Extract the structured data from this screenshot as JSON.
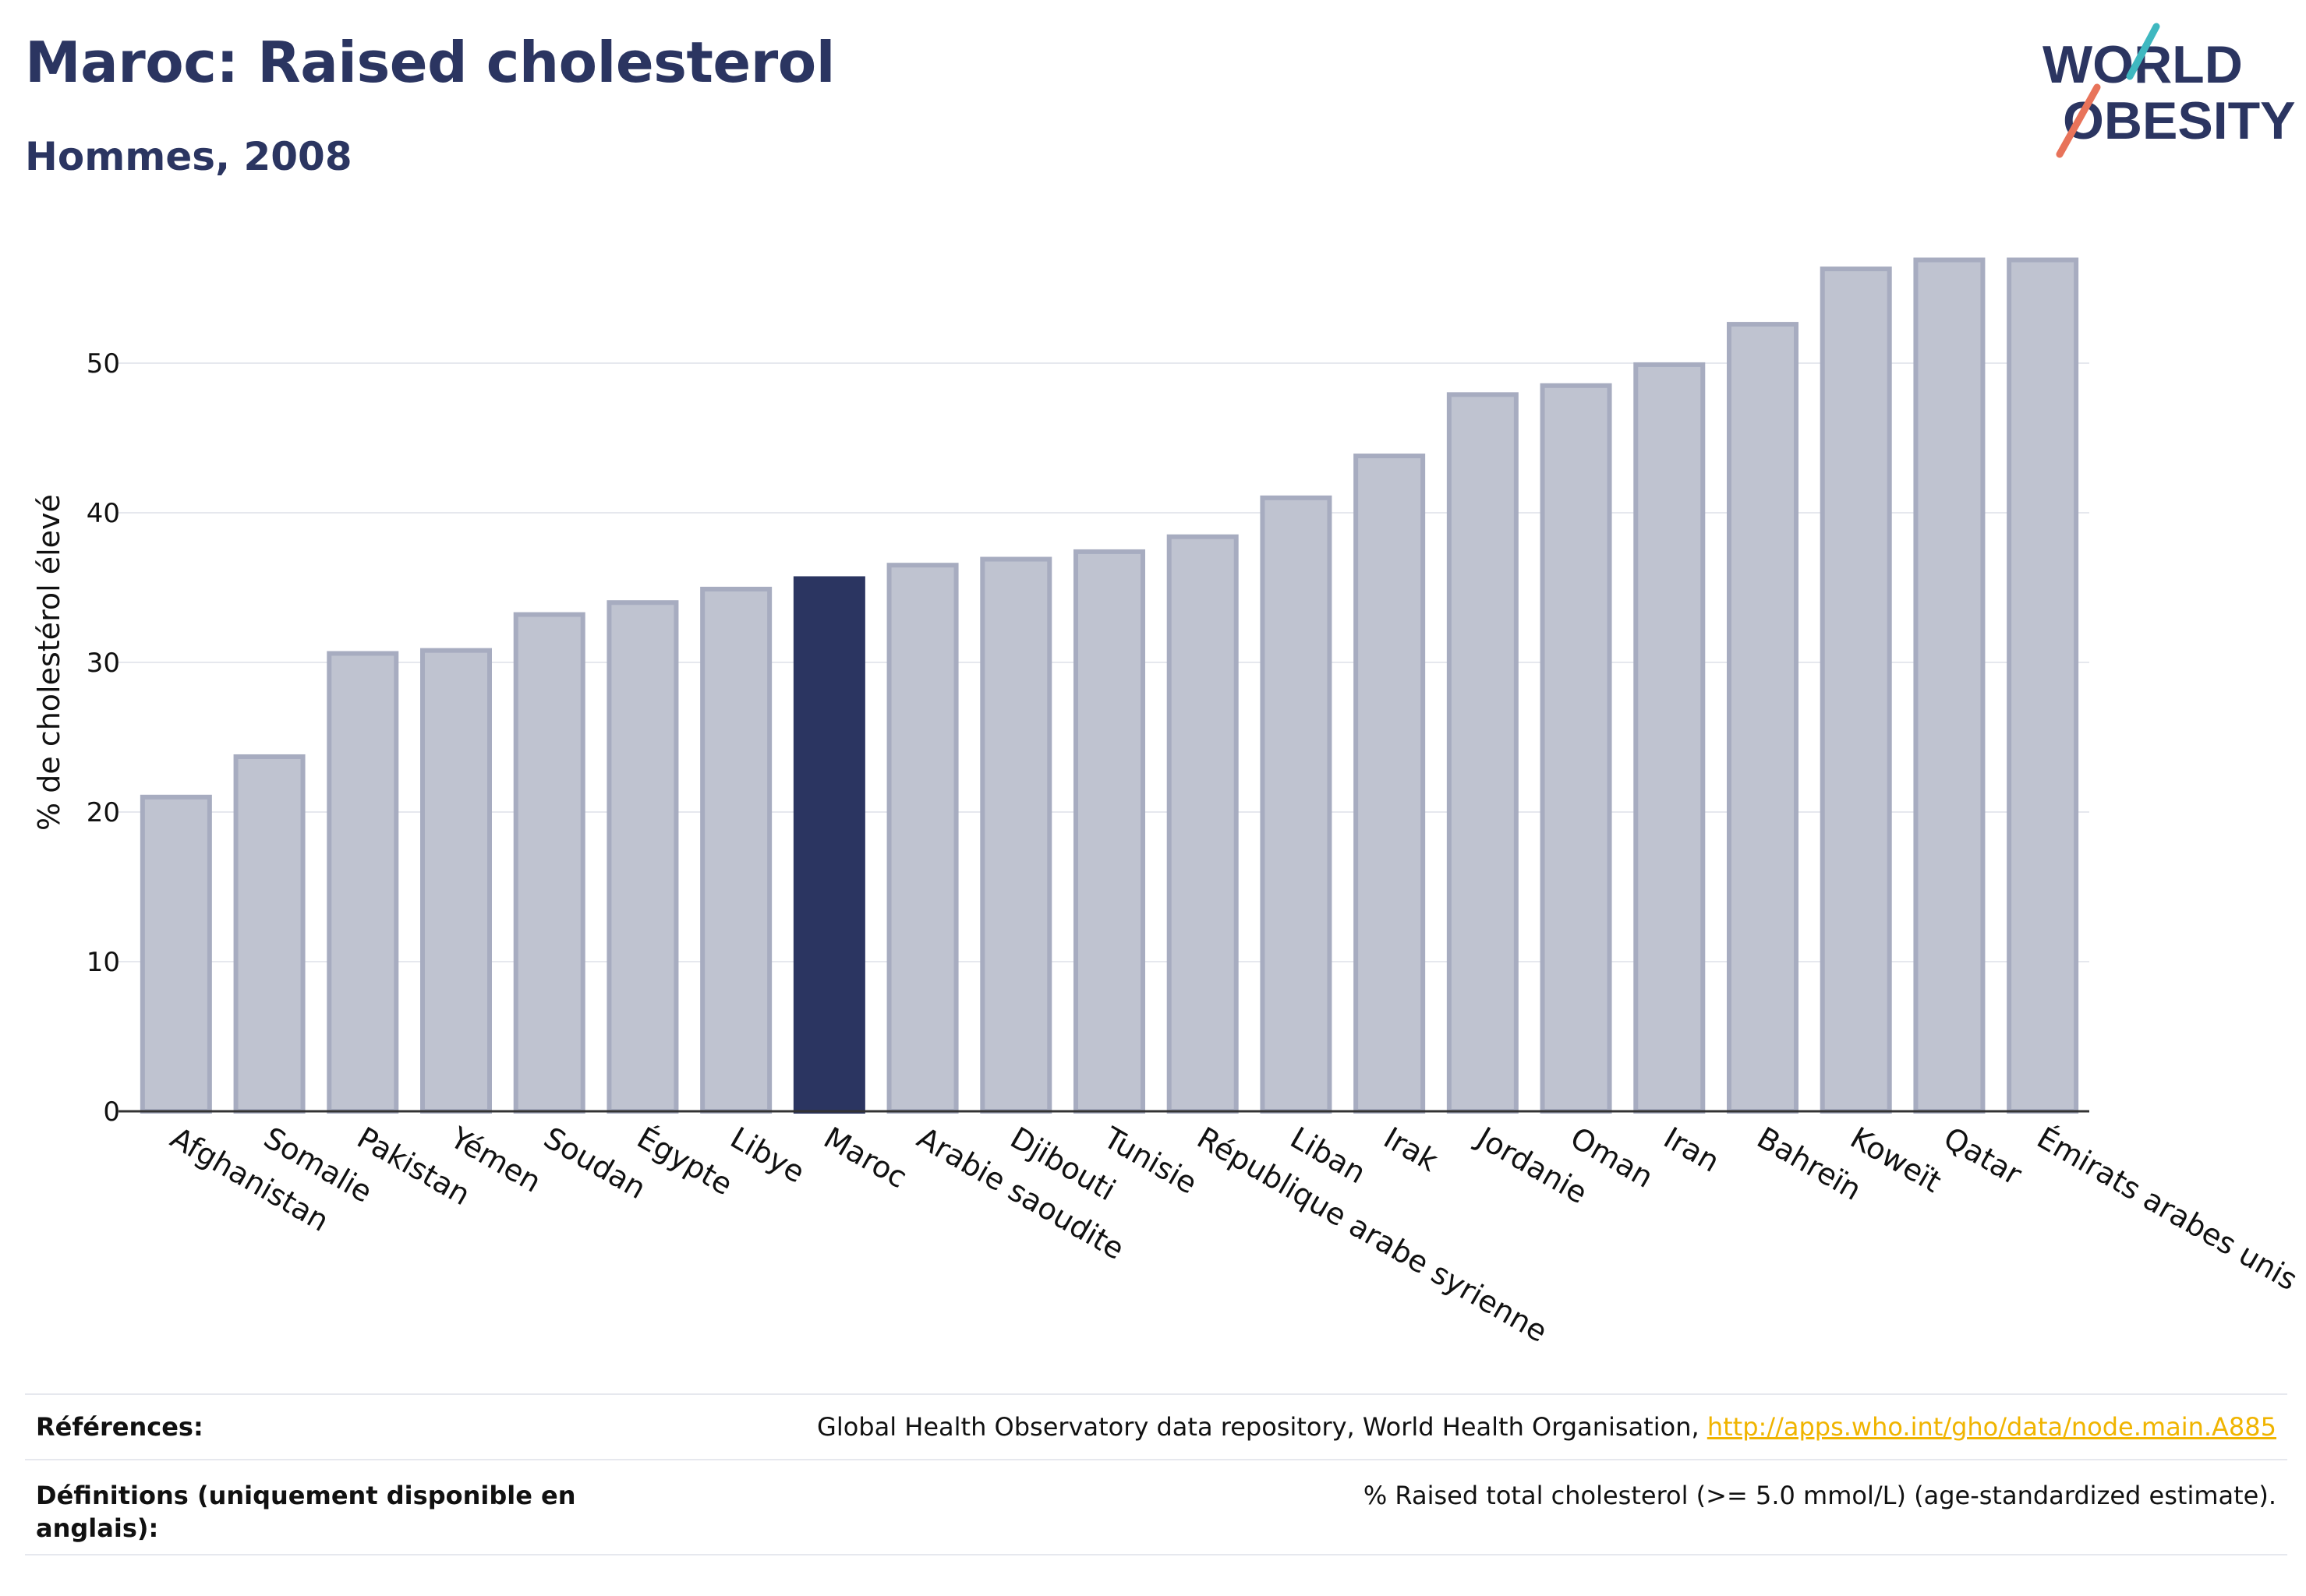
{
  "header": {
    "title": "Maroc: Raised cholesterol",
    "subtitle": "Hommes, 2008"
  },
  "logo": {
    "line1": "WORLD",
    "line2": "OBESITY"
  },
  "colors": {
    "highlight": "#2b3561",
    "bar_fill": "#bfc3d0",
    "bar_stroke": "#a7acc0",
    "grid": "#e6e8ee",
    "link": "#f0b400",
    "logo_teal": "#3fb8c0",
    "logo_coral": "#e8735a"
  },
  "chart_data": {
    "type": "bar",
    "ylabel": "% de cholestérol élevé",
    "xlabel": "",
    "ylim": [
      0,
      58
    ],
    "yticks": [
      0,
      10,
      20,
      30,
      40,
      50
    ],
    "grid": true,
    "highlight": "Maroc",
    "categories": [
      "Afghanistan",
      "Somalie",
      "Pakistan",
      "Yémen",
      "Soudan",
      "Égypte",
      "Libye",
      "Maroc",
      "Arabie saoudite",
      "Djibouti",
      "Tunisie",
      "République arabe syrienne",
      "Liban",
      "Irak",
      "Jordanie",
      "Oman",
      "Iran",
      "Bahreïn",
      "Koweït",
      "Qatar",
      "Émirats arabes unis"
    ],
    "values": [
      21.0,
      23.7,
      30.6,
      30.8,
      33.2,
      34.0,
      34.9,
      35.6,
      36.5,
      36.9,
      37.4,
      38.4,
      41.0,
      43.8,
      47.9,
      48.5,
      49.9,
      52.6,
      56.3,
      56.9,
      56.9
    ]
  },
  "references": {
    "label": "Références:",
    "text": "Global Health Observatory data repository, World Health Organisation, ",
    "link": "http://apps.who.int/gho/data/node.main.A885"
  },
  "definitions": {
    "label": "Définitions (uniquement disponible en anglais):",
    "text": "% Raised total cholesterol (>= 5.0 mmol/L) (age-standardized estimate)."
  }
}
